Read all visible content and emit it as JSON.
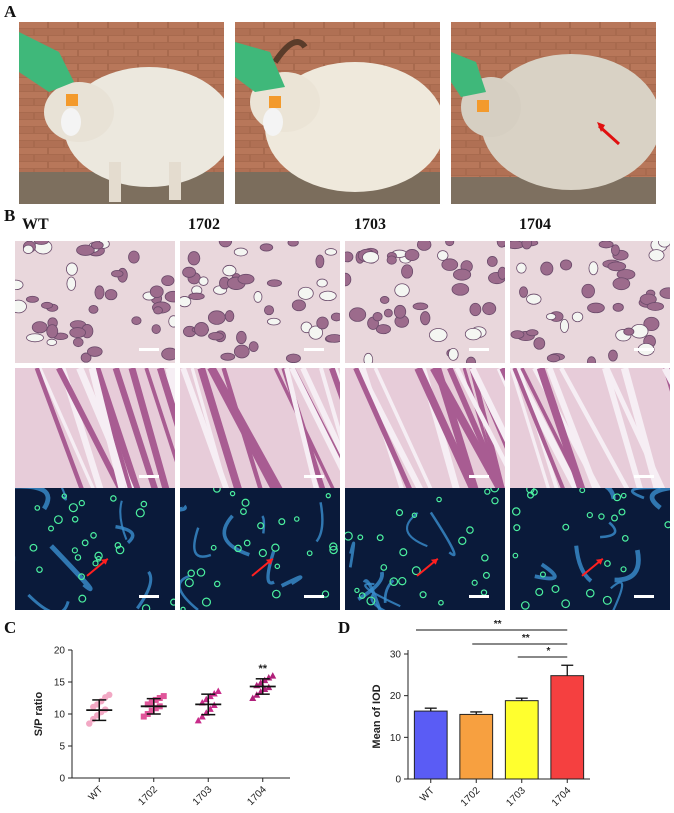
{
  "panels": {
    "a": "A",
    "b": "B",
    "c": "C",
    "d": "D"
  },
  "histology": {
    "columns": [
      "WT",
      "1702",
      "1703",
      "1704"
    ]
  },
  "chart_data": [
    {
      "type": "scatter",
      "panel": "C",
      "ylabel": "S/P ratio",
      "xlabel": "",
      "categories": [
        "WT",
        "1702",
        "1703",
        "1704"
      ],
      "ylim": [
        0,
        20
      ],
      "yticks": [
        0,
        5,
        10,
        15,
        20
      ],
      "mean": [
        10.6,
        11.2,
        11.5,
        14.3
      ],
      "sd": [
        1.6,
        1.2,
        1.6,
        1.2
      ],
      "points": [
        [
          8.5,
          9.2,
          9.8,
          10.3,
          10.7,
          11.1,
          11.5,
          12.0,
          12.6,
          13.0
        ],
        [
          9.6,
          10.0,
          10.5,
          10.9,
          11.2,
          11.5,
          11.8,
          12.2,
          12.5,
          12.8
        ],
        [
          9.0,
          9.6,
          10.2,
          10.8,
          11.4,
          11.8,
          12.3,
          12.8,
          13.2,
          13.6
        ],
        [
          12.5,
          13.0,
          13.5,
          13.9,
          14.2,
          14.5,
          14.9,
          15.3,
          15.7,
          16.0
        ]
      ],
      "point_colors": [
        "#f2a8c4",
        "#e0559a",
        "#c82c8a",
        "#b0207a"
      ],
      "annotations": [
        {
          "category": "1704",
          "text": "**"
        }
      ]
    },
    {
      "type": "bar",
      "panel": "D",
      "ylabel": "Mean of IOD",
      "xlabel": "",
      "categories": [
        "WT",
        "1702",
        "1703",
        "1704"
      ],
      "values": [
        16.3,
        15.5,
        18.8,
        24.8
      ],
      "errors": [
        0.7,
        0.6,
        0.6,
        2.5
      ],
      "colors": [
        "#5a5cf5",
        "#f7a040",
        "#ffff2e",
        "#f54040"
      ],
      "ylim": [
        0,
        30
      ],
      "yticks": [
        0,
        10,
        20,
        30
      ],
      "significance": [
        {
          "from": "WT",
          "to": "1704",
          "text": "**"
        },
        {
          "from": "1702",
          "to": "1704",
          "text": "**"
        },
        {
          "from": "1703",
          "to": "1704",
          "text": "*"
        }
      ]
    }
  ]
}
